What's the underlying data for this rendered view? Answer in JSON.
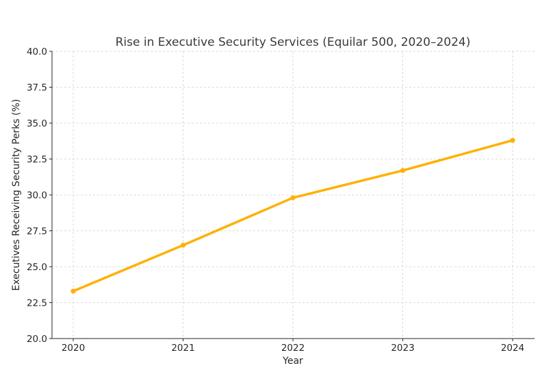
{
  "chart_data": {
    "type": "line",
    "title": "Rise in Executive Security Services (Equilar 500, 2020–2024)",
    "xlabel": "Year",
    "ylabel": "Executives Receiving Security Perks (%)",
    "categories": [
      "2020",
      "2021",
      "2022",
      "2023",
      "2024"
    ],
    "series": [
      {
        "values": [
          23.3,
          26.5,
          29.8,
          31.7,
          33.8
        ],
        "color": "#FFB000"
      }
    ],
    "ylim": [
      20.0,
      40.0
    ],
    "yticks": [
      "20.0",
      "22.5",
      "25.0",
      "27.5",
      "30.0",
      "32.5",
      "35.0",
      "37.5",
      "40.0"
    ],
    "grid": true
  }
}
